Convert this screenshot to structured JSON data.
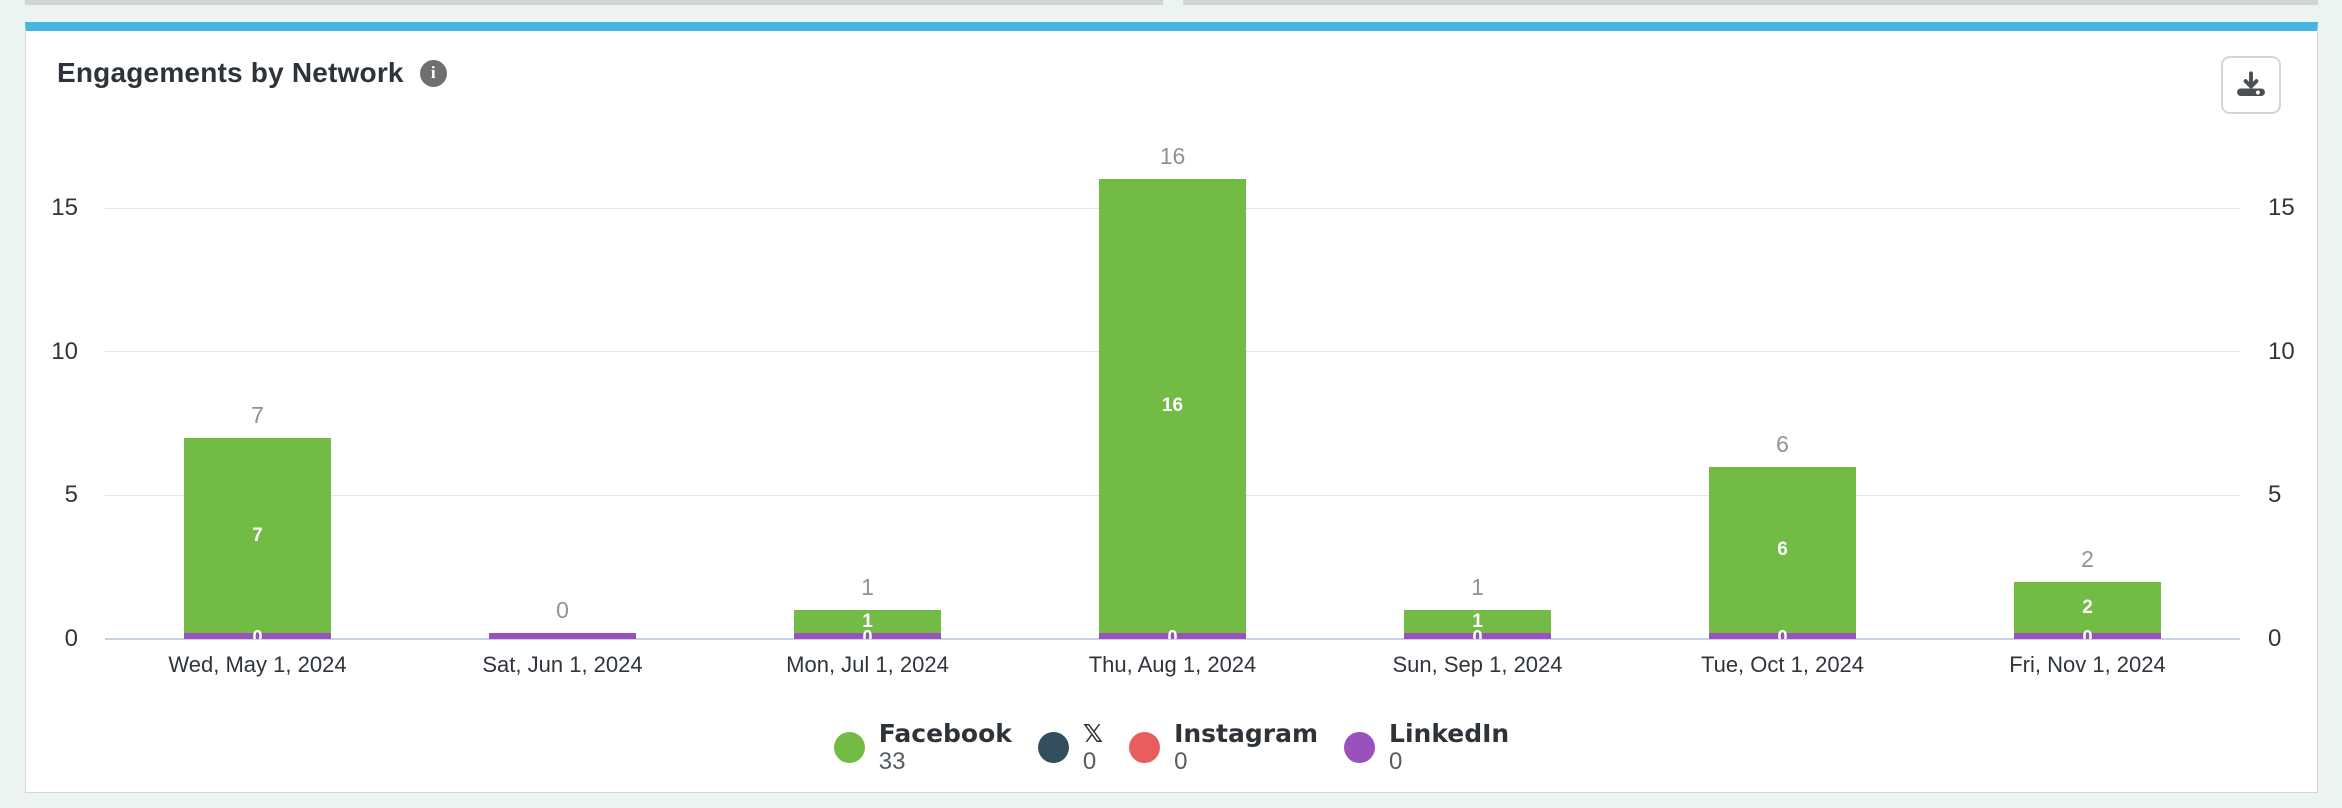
{
  "page": {
    "background_color": "#ecf4f2",
    "accent_color": "#47b4e1"
  },
  "card": {
    "title": "Engagements by Network",
    "info_icon_glyph": "i",
    "download_icon": "download-icon"
  },
  "chart_data": {
    "type": "bar",
    "stacked": true,
    "title": "Engagements by Network",
    "categories": [
      "Wed, May 1, 2024",
      "Sat, Jun 1, 2024",
      "Mon, Jul 1, 2024",
      "Thu, Aug 1, 2024",
      "Sun, Sep 1, 2024",
      "Tue, Oct 1, 2024",
      "Fri, Nov 1, 2024"
    ],
    "series": [
      {
        "name": "Facebook",
        "color": "#72bc46",
        "values": [
          7,
          0,
          1,
          16,
          1,
          6,
          2
        ],
        "total": 33
      },
      {
        "name": "𝕏",
        "color": "#334f5e",
        "values": [
          0,
          0,
          0,
          0,
          0,
          0,
          0
        ],
        "total": 0
      },
      {
        "name": "Instagram",
        "color": "#e95d5c",
        "values": [
          0,
          0,
          0,
          0,
          0,
          0,
          0
        ],
        "total": 0
      },
      {
        "name": "LinkedIn",
        "color": "#9b51bc",
        "values": [
          0,
          0,
          0,
          0,
          0,
          0,
          0
        ],
        "total": 0
      }
    ],
    "bar_totals": [
      7,
      0,
      1,
      16,
      1,
      6,
      2
    ],
    "bar_inner_labels": [
      "7",
      "",
      "1",
      "16",
      "1",
      "6",
      "2"
    ],
    "bar_zero_overlay": "0",
    "yticks": [
      0,
      5,
      10,
      15
    ],
    "ylim": [
      0,
      16.3
    ],
    "ylabel": "",
    "xlabel": "",
    "grid": true,
    "legend_position": "bottom"
  },
  "legend": {
    "items": [
      {
        "label": "Facebook",
        "value": "33",
        "color": "#72bc46"
      },
      {
        "label": "𝕏",
        "value": "0",
        "color": "#334f5e"
      },
      {
        "label": "Instagram",
        "value": "0",
        "color": "#e95d5c"
      },
      {
        "label": "LinkedIn",
        "value": "0",
        "color": "#9b51bc"
      }
    ]
  }
}
